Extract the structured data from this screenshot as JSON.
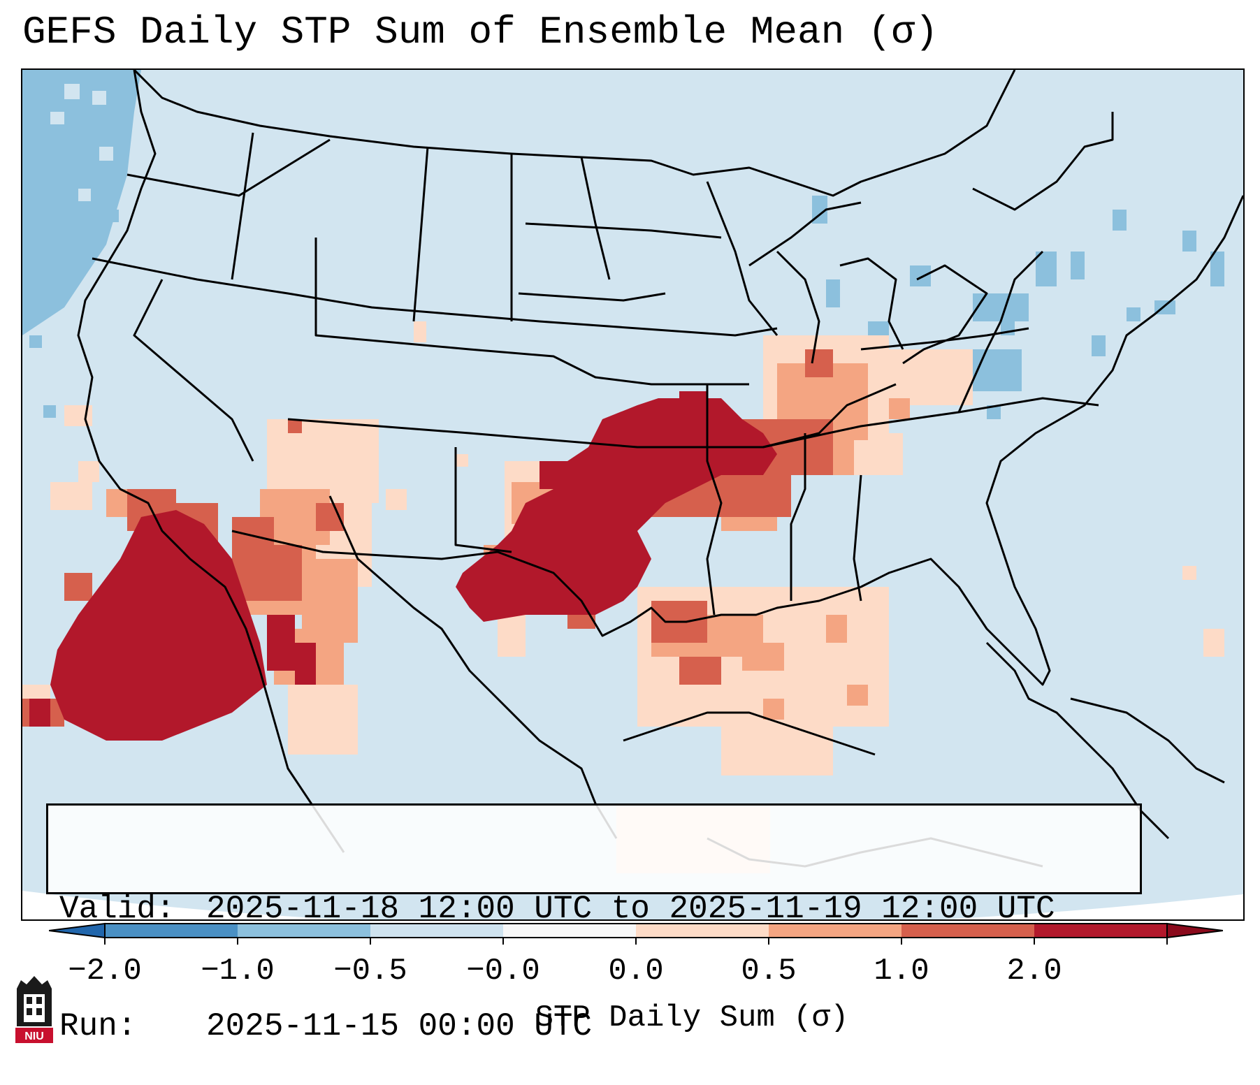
{
  "title": "GEFS Daily STP Sum of Ensemble Mean (σ)",
  "info": {
    "valid_key": "Valid:",
    "valid_value": "2025-11-18 12:00 UTC to 2025-11-19 12:00 UTC",
    "run_key": "Run:",
    "run_value": "2025-11-15 00:00 UTC"
  },
  "colorbar": {
    "label": "STP Daily Sum (σ)",
    "ticks": [
      "−2.0",
      "−1.0",
      "−0.5",
      "−0.0",
      "0.0",
      "0.5",
      "1.0",
      "2.0"
    ],
    "bins": [
      "#4a90c4",
      "#8cc0dd",
      "#cfe3ef",
      "#f7f7f7",
      "#fddbc7",
      "#f4a582",
      "#d6604d",
      "#b2182b"
    ],
    "under_color": "#2166ac",
    "over_color": "#8b0a1c"
  },
  "map": {
    "background_color": "#d2e5f0",
    "region": "Continental United States and adjacent Canada/Mexico",
    "fields": [
      {
        "region": "Southern Plains / Oklahoma / North Texas",
        "level": "greater than 2.0"
      },
      {
        "region": "Arkansas / Missouri / Mid-Mississippi Valley",
        "level": "1.0 to 2.0"
      },
      {
        "region": "Ohio Valley / Tennessee Valley",
        "level": "0.0 to 1.0"
      },
      {
        "region": "Southwest / Gulf of California",
        "level": "0.5 to 2.0"
      },
      {
        "region": "Eastern Pacific off Baja California",
        "level": "greater than 2.0"
      },
      {
        "region": "Western Gulf of Mexico",
        "level": "0.0 to 1.0"
      },
      {
        "region": "Pacific Northwest offshore",
        "level": "-1.0 to -0.5"
      },
      {
        "region": "Great Lakes / Northeast",
        "level": "-1.0 to -0.5"
      }
    ]
  }
}
